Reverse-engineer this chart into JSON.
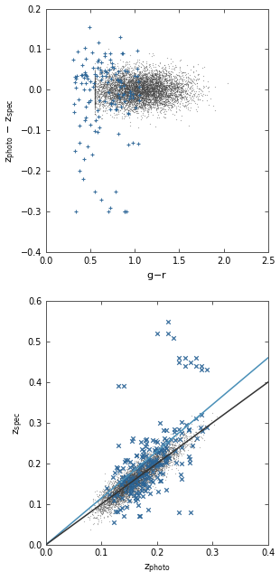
{
  "top_panel": {
    "xlabel": "g$-$r",
    "ylabel": "z$_{\\rm photo}$ $-$ z$_{\\rm spec}$",
    "xlim": [
      0.0,
      2.5
    ],
    "ylim": [
      -0.4,
      0.2
    ],
    "xticks": [
      0.0,
      0.5,
      1.0,
      1.5,
      2.0,
      2.5
    ],
    "yticks": [
      -0.4,
      -0.3,
      -0.2,
      -0.1,
      0.0,
      0.1,
      0.2
    ],
    "bg_dot_color": "#444444",
    "bcg_marker_color": "#2a6496",
    "bg_n": 6000,
    "bcg_n": 120
  },
  "bottom_panel": {
    "xlabel": "z$_{\\rm photo}$",
    "ylabel": "z$_{\\rm spec}$",
    "xlim": [
      0.0,
      0.4
    ],
    "ylim": [
      0.0,
      0.6
    ],
    "xticks": [
      0.0,
      0.1,
      0.2,
      0.3,
      0.4
    ],
    "yticks": [
      0.0,
      0.1,
      0.2,
      0.3,
      0.4,
      0.5,
      0.6
    ],
    "bg_dot_color": "#444444",
    "bcg_marker_color": "#2a6496",
    "line_blue_slope": 1.15,
    "line_dark_slope": 1.0,
    "line1_color": "#4a90b8",
    "line2_color": "#333333",
    "bg_n": 5000,
    "bcg_n": 200
  },
  "figure": {
    "bg_color": "#ffffff",
    "tick_label_size": 7,
    "axis_label_size": 8
  }
}
